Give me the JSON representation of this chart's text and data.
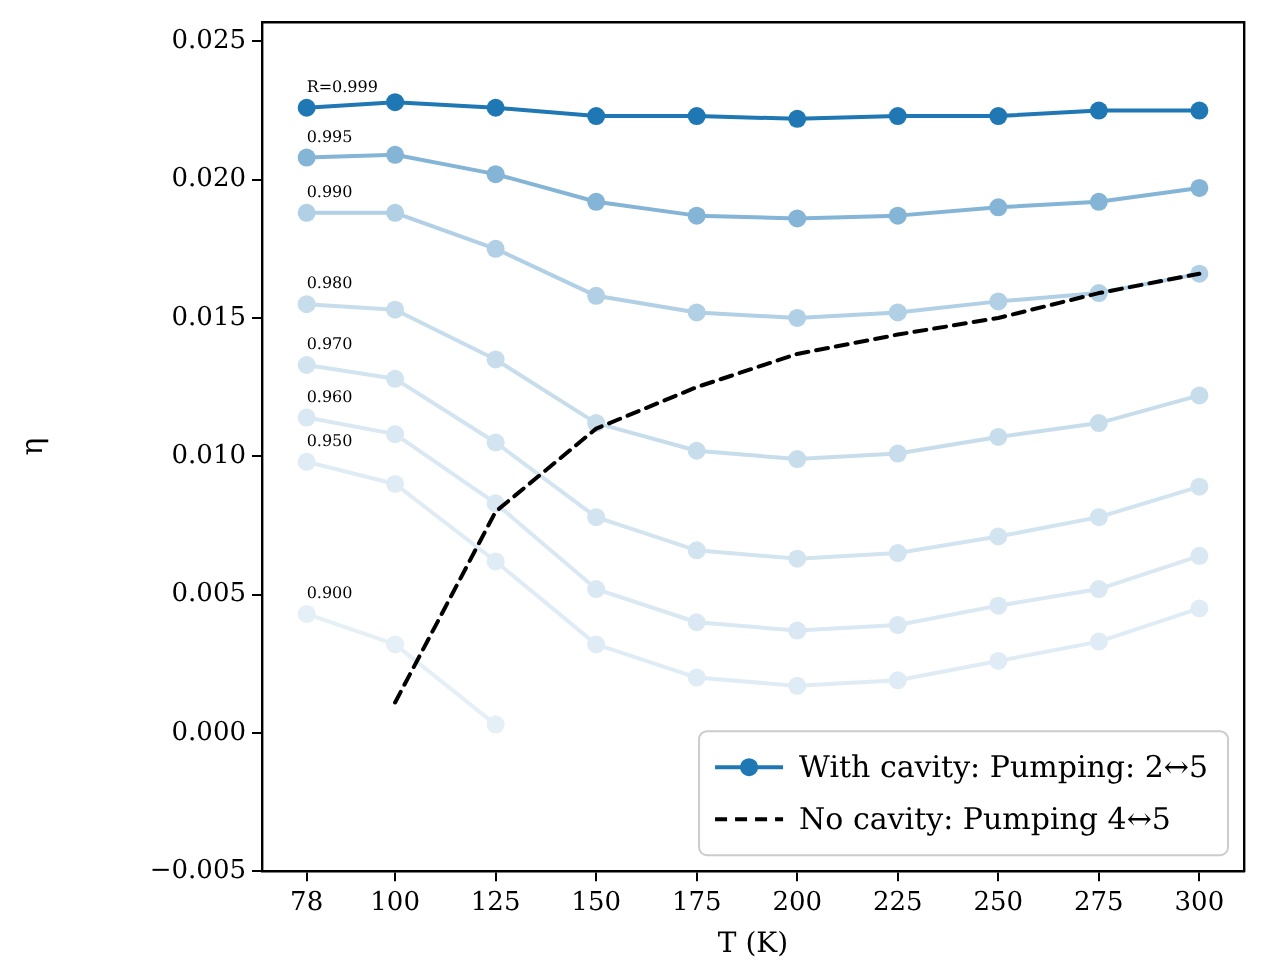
{
  "chart_data": {
    "type": "line",
    "xlabel": "T (K)",
    "ylabel": "η",
    "x": [
      78,
      100,
      125,
      150,
      175,
      200,
      225,
      250,
      275,
      300
    ],
    "series": [
      {
        "name": "With cavity: Pumping: 2↔5",
        "color": "#1f77b4",
        "values": [
          0.0226,
          0.0228,
          0.0226,
          0.0223,
          0.0223,
          0.0222,
          0.0223,
          0.0223,
          0.0225,
          0.0225
        ]
      },
      {
        "name": "0.995",
        "color": "#84b4d6",
        "values": [
          0.0208,
          0.0209,
          0.0202,
          0.0192,
          0.0187,
          0.0186,
          0.0187,
          0.019,
          0.0192,
          0.0197
        ]
      },
      {
        "name": "0.990",
        "color": "#b1cfe5",
        "values": [
          0.0188,
          0.0188,
          0.0175,
          0.0158,
          0.0152,
          0.015,
          0.0152,
          0.0156,
          0.0159,
          0.0166
        ]
      },
      {
        "name": "0.980",
        "color": "#c7ddec",
        "values": [
          0.0155,
          0.0153,
          0.0135,
          0.0112,
          0.0102,
          0.0099,
          0.0101,
          0.0107,
          0.0112,
          0.0122
        ]
      },
      {
        "name": "0.970",
        "color": "#d2e4f0",
        "values": [
          0.0133,
          0.0128,
          0.0105,
          0.0078,
          0.0066,
          0.0063,
          0.0065,
          0.0071,
          0.0078,
          0.0089
        ]
      },
      {
        "name": "0.960",
        "color": "#d9e8f2",
        "values": [
          0.0114,
          0.0108,
          0.0083,
          0.0052,
          0.004,
          0.0037,
          0.0039,
          0.0046,
          0.0052,
          0.0064
        ]
      },
      {
        "name": "0.950",
        "color": "#e0ecf5",
        "values": [
          0.0098,
          0.009,
          0.0062,
          0.0032,
          0.002,
          0.0017,
          0.0019,
          0.0026,
          0.0033,
          0.0045
        ]
      },
      {
        "name": "0.900",
        "color": "#e4eff6",
        "values": [
          0.0043,
          0.0032,
          0.0003,
          null,
          null,
          null,
          null,
          null,
          null,
          null
        ]
      },
      {
        "name": "No cavity: Pumping 4↔5",
        "color": "#000000",
        "marker": "none",
        "line_style": "dashed",
        "values": [
          null,
          0.0011,
          0.008,
          0.011,
          0.0125,
          0.0137,
          0.0144,
          0.015,
          0.0159,
          0.0166
        ]
      }
    ],
    "annotations": [
      {
        "text": "R=0.999",
        "x": 78,
        "y": 0.0226
      }
    ],
    "xlim": [
      66.9,
      311.1
    ],
    "xticks": [
      78,
      100,
      125,
      150,
      175,
      200,
      225,
      250,
      275,
      300
    ],
    "ylim": [
      -0.005,
      0.0257
    ],
    "yticks": [
      {
        "value": -0.005,
        "label": "−0.005"
      },
      {
        "value": 0,
        "label": "0.000"
      },
      {
        "value": 0.005,
        "label": "0.005"
      },
      {
        "value": 0.01,
        "label": "0.010"
      },
      {
        "value": 0.015,
        "label": "0.015"
      },
      {
        "value": 0.02,
        "label": "0.020"
      },
      {
        "value": 0.025,
        "label": "0.025"
      }
    ],
    "grid": false,
    "legend": "bottom right",
    "marker": "circle",
    "line_style": "solid"
  }
}
